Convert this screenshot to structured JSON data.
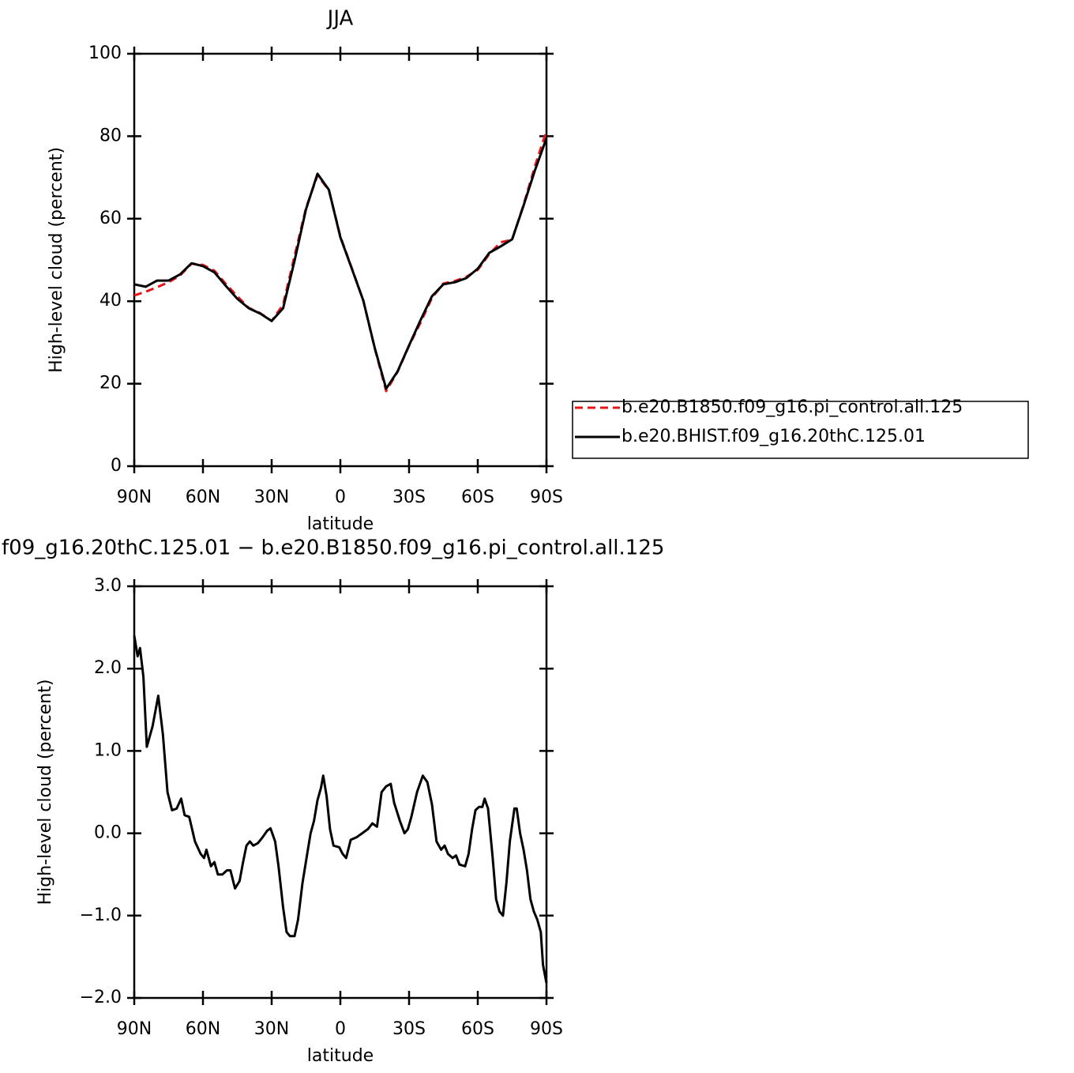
{
  "chart_data": [
    {
      "type": "line",
      "title": "JJA",
      "xlabel": "latitude",
      "ylabel": "High-level cloud (percent)",
      "x": [
        90,
        85,
        80,
        75,
        70,
        65,
        60,
        55,
        50,
        45,
        40,
        35,
        30,
        25,
        20,
        15,
        10,
        5,
        0,
        -5,
        -10,
        -15,
        -20,
        -25,
        -30,
        -35,
        -40,
        -45,
        -50,
        -55,
        -60,
        -65,
        -70,
        -75,
        -80,
        -85,
        -90
      ],
      "series": [
        {
          "name": "b.e20.B1850.f09_g16.pi_control.all.125",
          "color": "#e8141a",
          "line_style": "dashed",
          "values": [
            41.4,
            42.3,
            43.4,
            44.6,
            46.2,
            49.1,
            48.8,
            47.4,
            44.2,
            41.2,
            38.4,
            37.1,
            35.2,
            39.2,
            51,
            62.6,
            70.5,
            66.9,
            55.7,
            48,
            40.2,
            28.6,
            18.2,
            22.9,
            29.2,
            34.8,
            40.8,
            44.3,
            44.9,
            45.9,
            47.6,
            51.4,
            54.3,
            54.9,
            63.4,
            72.8,
            81.3
          ]
        },
        {
          "name": "b.e20.BHIST.f09_g16.20thC.125.01",
          "color": "#000000",
          "line_style": "solid",
          "values": [
            44.1,
            43.5,
            45,
            45,
            46.5,
            49.2,
            48.5,
            47,
            43.7,
            40.6,
            38.3,
            37,
            35.2,
            38.3,
            49.8,
            62.3,
            70.9,
            67,
            55.5,
            47.9,
            40.2,
            28.7,
            18.8,
            23,
            29.3,
            35.4,
            41.2,
            44.1,
            44.6,
            45.6,
            47.9,
            51.7,
            53.3,
            55,
            63.2,
            71.8,
            79.5
          ]
        }
      ],
      "xlim": [
        90,
        -90
      ],
      "xticks": [
        {
          "value": 90,
          "label": "90N"
        },
        {
          "value": 60,
          "label": "60N"
        },
        {
          "value": 30,
          "label": "30N"
        },
        0,
        {
          "value": -30,
          "label": "30S"
        },
        {
          "value": -60,
          "label": "60S"
        },
        {
          "value": -90,
          "label": "90S"
        }
      ],
      "ylim": [
        0,
        100
      ],
      "yticks": [
        0,
        20,
        40,
        60,
        80,
        100
      ],
      "legend": "right"
    },
    {
      "type": "line",
      "title": "f09_g16.20thC.125.01 − b.e20.B1850.f09_g16.pi_control.all.125",
      "xlabel": "latitude",
      "ylabel": "High-level cloud (percent)",
      "x": [
        90,
        88.5,
        87.5,
        86,
        84.5,
        82,
        79.5,
        77.5,
        75.5,
        73.5,
        71.5,
        69.5,
        68,
        66,
        63.5,
        61,
        59.5,
        58.5,
        56.5,
        55,
        53.5,
        51.5,
        49.5,
        48,
        46,
        44,
        42.5,
        41,
        39.5,
        38,
        36,
        34,
        32,
        30.5,
        28.5,
        27,
        25,
        23.5,
        22,
        20,
        18.5,
        16.5,
        14.5,
        13,
        11.5,
        10,
        8.5,
        7.5,
        6,
        4.5,
        3,
        0.5,
        -1,
        -2.5,
        -4.5,
        -7,
        -9.5,
        -12,
        -14,
        -16,
        -18,
        -20,
        -22,
        -23.5,
        -26,
        -28,
        -29.5,
        -31,
        -33.5,
        -36,
        -38,
        -40,
        -42,
        -44,
        -45.5,
        -47,
        -49,
        -50.5,
        -52,
        -54.5,
        -56,
        -57.5,
        -59,
        -60.5,
        -62,
        -63,
        -64.5,
        -66.5,
        -68,
        -69.5,
        -71,
        -72.5,
        -74,
        -76,
        -77,
        -78.5,
        -80,
        -81.5,
        -83,
        -84.5,
        -86,
        -87.5,
        -88.5,
        -90
      ],
      "values": [
        2.4,
        2.15,
        2.25,
        1.9,
        1.05,
        1.3,
        1.67,
        1.2,
        0.5,
        0.28,
        0.3,
        0.42,
        0.22,
        0.2,
        -0.1,
        -0.25,
        -0.3,
        -0.2,
        -0.4,
        -0.35,
        -0.5,
        -0.5,
        -0.45,
        -0.45,
        -0.67,
        -0.58,
        -0.35,
        -0.15,
        -0.1,
        -0.15,
        -0.12,
        -0.05,
        0.03,
        0.06,
        -0.1,
        -0.4,
        -0.9,
        -1.2,
        -1.25,
        -1.25,
        -1.05,
        -0.6,
        -0.25,
        0,
        0.15,
        0.4,
        0.55,
        0.7,
        0.45,
        0.05,
        -0.15,
        -0.17,
        -0.25,
        -0.3,
        -0.08,
        -0.05,
        0,
        0.05,
        0.12,
        0.08,
        0.5,
        0.57,
        0.6,
        0.37,
        0.15,
        0,
        0.05,
        0.2,
        0.5,
        0.7,
        0.62,
        0.35,
        -0.1,
        -0.2,
        -0.15,
        -0.25,
        -0.3,
        -0.27,
        -0.38,
        -0.4,
        -0.25,
        0.05,
        0.28,
        0.32,
        0.32,
        0.42,
        0.3,
        -0.3,
        -0.8,
        -0.95,
        -1,
        -0.6,
        -0.1,
        0.3,
        0.3,
        0,
        -0.2,
        -0.45,
        -0.8,
        -0.95,
        -1.05,
        -1.2,
        -1.6,
        -1.82
      ],
      "color": "#000000",
      "xlim": [
        90,
        -90
      ],
      "xticks": [
        {
          "value": 90,
          "label": "90N"
        },
        {
          "value": 60,
          "label": "60N"
        },
        {
          "value": 30,
          "label": "30N"
        },
        0,
        {
          "value": -30,
          "label": "30S"
        },
        {
          "value": -60,
          "label": "60S"
        },
        {
          "value": -90,
          "label": "90S"
        }
      ],
      "ylim": [
        -2,
        3
      ],
      "yticks": [
        {
          "value": -2,
          "label": "−2.0"
        },
        {
          "value": -1,
          "label": "−1.0"
        },
        {
          "value": 0,
          "label": "0.0"
        },
        {
          "value": 1,
          "label": "1.0"
        },
        {
          "value": 2,
          "label": "2.0"
        },
        {
          "value": 3,
          "label": "3.0"
        }
      ]
    }
  ]
}
